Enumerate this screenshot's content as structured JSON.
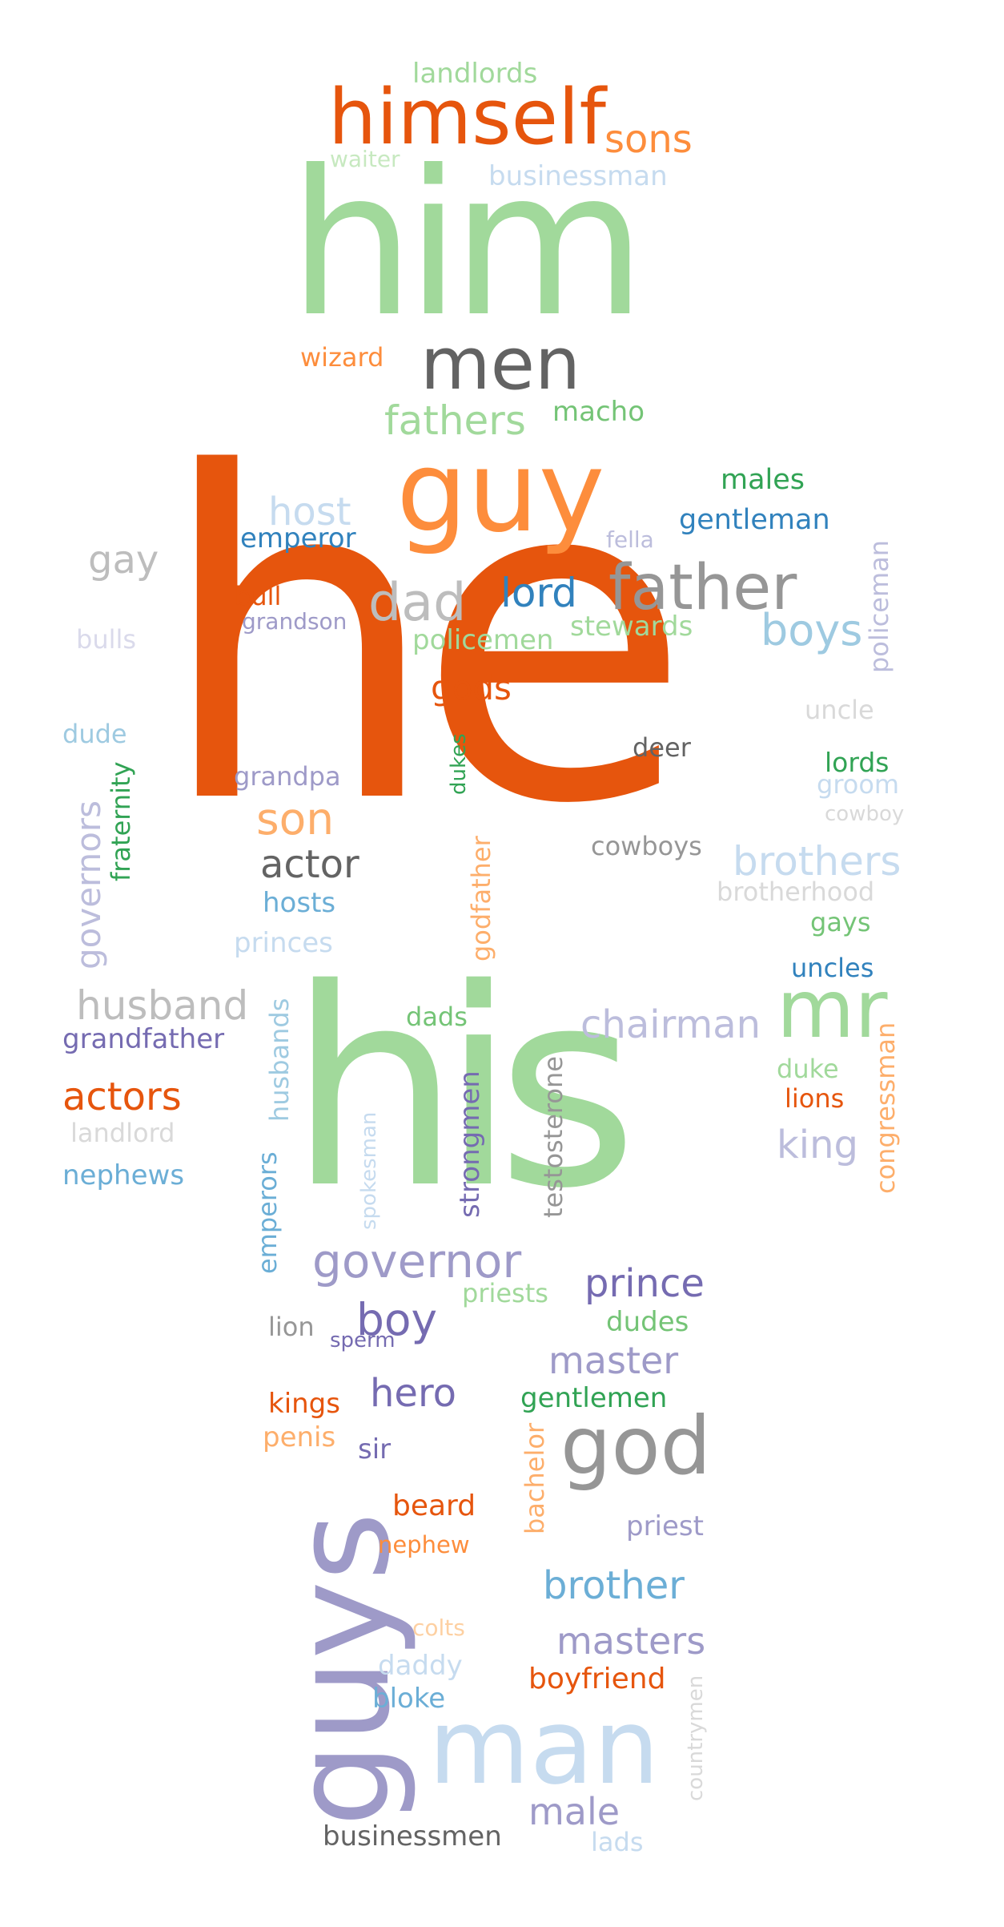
{
  "words": [
    {
      "text": "he",
      "color": "#e6550d"
    },
    {
      "text": "his",
      "color": "#a1d99b"
    },
    {
      "text": "him",
      "color": "#a1d99b"
    },
    {
      "text": "guys",
      "color": "#9e9ac8"
    },
    {
      "text": "man",
      "color": "#c6dbef"
    },
    {
      "text": "guy",
      "color": "#fd8d3c"
    },
    {
      "text": "himself",
      "color": "#e6550d"
    },
    {
      "text": "mr",
      "color": "#a1d99b"
    },
    {
      "text": "men",
      "color": "#636363"
    },
    {
      "text": "god",
      "color": "#969696"
    },
    {
      "text": "father",
      "color": "#969696"
    },
    {
      "text": "dad",
      "color": "#bdbdbd"
    },
    {
      "text": "governor",
      "color": "#9e9ac8"
    },
    {
      "text": "boy",
      "color": "#756bb1"
    },
    {
      "text": "son",
      "color": "#fdae6b"
    },
    {
      "text": "boys",
      "color": "#9ecae1"
    },
    {
      "text": "brothers",
      "color": "#c6dbef"
    },
    {
      "text": "chairman",
      "color": "#bcbddc"
    },
    {
      "text": "husband",
      "color": "#bdbdbd"
    },
    {
      "text": "actor",
      "color": "#636363"
    },
    {
      "text": "brother",
      "color": "#6baed6"
    },
    {
      "text": "masters",
      "color": "#9e9ac8"
    },
    {
      "text": "master",
      "color": "#9e9ac8"
    },
    {
      "text": "prince",
      "color": "#756bb1"
    },
    {
      "text": "hero",
      "color": "#756bb1"
    },
    {
      "text": "king",
      "color": "#bcbddc"
    },
    {
      "text": "actors",
      "color": "#e6550d"
    },
    {
      "text": "fathers",
      "color": "#a1d99b"
    },
    {
      "text": "lord",
      "color": "#3182bd"
    },
    {
      "text": "male",
      "color": "#9e9ac8"
    },
    {
      "text": "host",
      "color": "#c6dbef"
    },
    {
      "text": "gay",
      "color": "#bdbdbd"
    },
    {
      "text": "sons",
      "color": "#fd8d3c"
    },
    {
      "text": "gods",
      "color": "#e6550d"
    },
    {
      "text": "governors",
      "color": "#bcbddc"
    },
    {
      "text": "landlords",
      "color": "#a1d99b"
    },
    {
      "text": "businessman",
      "color": "#c6dbef"
    },
    {
      "text": "gentleman",
      "color": "#3182bd"
    },
    {
      "text": "males",
      "color": "#31a354"
    },
    {
      "text": "macho",
      "color": "#74c476"
    },
    {
      "text": "emperor",
      "color": "#3182bd"
    },
    {
      "text": "policemen",
      "color": "#a1d99b"
    },
    {
      "text": "stewards",
      "color": "#a1d99b"
    },
    {
      "text": "grandfather",
      "color": "#756bb1"
    },
    {
      "text": "businessmen",
      "color": "#636363"
    },
    {
      "text": "boyfriend",
      "color": "#e6550d"
    },
    {
      "text": "gentlemen",
      "color": "#31a354"
    },
    {
      "text": "testosterone",
      "color": "#969696"
    },
    {
      "text": "strongmen",
      "color": "#756bb1"
    },
    {
      "text": "emperors",
      "color": "#6baed6"
    },
    {
      "text": "husbands",
      "color": "#9ecae1"
    },
    {
      "text": "congressman",
      "color": "#fdae6b"
    },
    {
      "text": "policeman",
      "color": "#bcbddc"
    },
    {
      "text": "godfather",
      "color": "#fdae6b"
    },
    {
      "text": "bachelor",
      "color": "#fdae6b"
    },
    {
      "text": "fraternity",
      "color": "#31a354"
    },
    {
      "text": "wizard",
      "color": "#fd8d3c"
    },
    {
      "text": "cowboys",
      "color": "#969696"
    },
    {
      "text": "deer",
      "color": "#636363"
    },
    {
      "text": "uncle",
      "color": "#d9d9d9"
    },
    {
      "text": "lords",
      "color": "#31a354"
    },
    {
      "text": "groom",
      "color": "#c6dbef"
    },
    {
      "text": "cowboy",
      "color": "#d9d9d9"
    },
    {
      "text": "brotherhood",
      "color": "#d9d9d9"
    },
    {
      "text": "gays",
      "color": "#74c476"
    },
    {
      "text": "uncles",
      "color": "#3182bd"
    },
    {
      "text": "duke",
      "color": "#a1d99b"
    },
    {
      "text": "lions",
      "color": "#e6550d"
    },
    {
      "text": "bull",
      "color": "#e6550d"
    },
    {
      "text": "grandson",
      "color": "#9e9ac8"
    },
    {
      "text": "bulls",
      "color": "#dadaeb"
    },
    {
      "text": "dude",
      "color": "#9ecae1"
    },
    {
      "text": "grandpa",
      "color": "#9e9ac8"
    },
    {
      "text": "hosts",
      "color": "#6baed6"
    },
    {
      "text": "princes",
      "color": "#c6dbef"
    },
    {
      "text": "dukes",
      "color": "#31a354"
    },
    {
      "text": "fella",
      "color": "#bcbddc"
    },
    {
      "text": "dads",
      "color": "#74c476"
    },
    {
      "text": "landlord",
      "color": "#d9d9d9"
    },
    {
      "text": "nephews",
      "color": "#6baed6"
    },
    {
      "text": "spokesman",
      "color": "#c6dbef"
    },
    {
      "text": "priests",
      "color": "#a1d99b"
    },
    {
      "text": "dudes",
      "color": "#74c476"
    },
    {
      "text": "lion",
      "color": "#969696"
    },
    {
      "text": "sperm",
      "color": "#756bb1"
    },
    {
      "text": "kings",
      "color": "#e6550d"
    },
    {
      "text": "penis",
      "color": "#fdae6b"
    },
    {
      "text": "sir",
      "color": "#756bb1"
    },
    {
      "text": "beard",
      "color": "#e6550d"
    },
    {
      "text": "nephew",
      "color": "#fd8d3c"
    },
    {
      "text": "priest",
      "color": "#9e9ac8"
    },
    {
      "text": "colts",
      "color": "#fdd0a2"
    },
    {
      "text": "daddy",
      "color": "#c6dbef"
    },
    {
      "text": "bloke",
      "color": "#6baed6"
    },
    {
      "text": "countrymen",
      "color": "#d9d9d9"
    },
    {
      "text": "lads",
      "color": "#c6dbef"
    },
    {
      "text": "waiter",
      "color": "#c7e9c0"
    }
  ]
}
